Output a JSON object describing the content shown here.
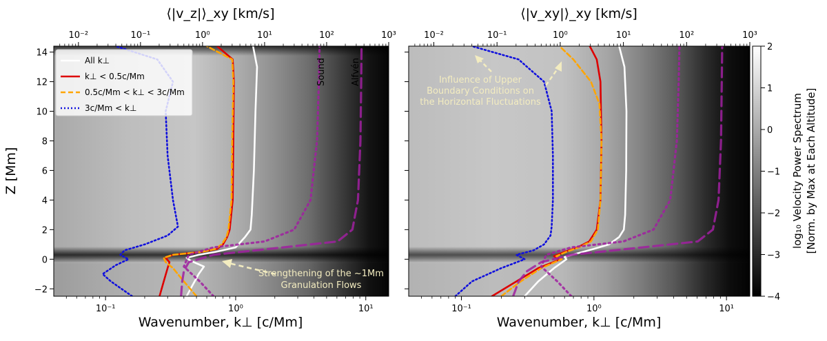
{
  "chart_data": [
    {
      "type": "line",
      "panel": "left",
      "title": "",
      "xlabel": "Wavenumber, k⊥ [c/Mm]",
      "top_xlabel": "⟨|v_z|⟩_xy [km/s]",
      "ylabel": "Z [Mm]",
      "xscale": "log",
      "xlim": [
        0.04,
        15
      ],
      "top_xlim": [
        0.004,
        1000
      ],
      "ylim": [
        -2.5,
        14.4
      ],
      "yticks": [
        -2,
        0,
        2,
        4,
        6,
        8,
        10,
        12,
        14
      ],
      "xtick_labels": [
        "10⁻¹",
        "10⁰",
        "10¹"
      ],
      "top_xtick_labels": [
        "10⁻²",
        "10⁻¹",
        "10⁰",
        "10¹",
        "10²",
        "10³"
      ],
      "background": "log10 normalized velocity power spectrum (grayscale heatmap)",
      "legend": {
        "placement": "top-left",
        "entries": [
          "All k⊥",
          "k⊥ < 0.5c/Mm",
          "0.5c/Mm < k⊥ < 3c/Mm",
          "3c/Mm < k⊥"
        ]
      },
      "series": [
        {
          "name": "All k⊥",
          "color": "#ffffff",
          "style": "solid",
          "z": [
            -2.5,
            -2.0,
            -1.0,
            -0.5,
            -0.1,
            0.1,
            0.3,
            0.5,
            0.8,
            1.5,
            2.0,
            3.0,
            6.0,
            10.0,
            13.0,
            14.4
          ],
          "values": [
            0.42,
            0.45,
            0.52,
            0.57,
            0.45,
            0.42,
            0.52,
            0.7,
            1.0,
            1.18,
            1.3,
            1.33,
            1.38,
            1.42,
            1.46,
            1.36
          ]
        },
        {
          "name": "k⊥ < 0.5c/Mm",
          "color": "#dd0000",
          "style": "solid",
          "z": [
            -2.5,
            -1.5,
            -0.6,
            -0.2,
            0.1,
            0.3,
            0.5,
            0.7,
            1.0,
            1.5,
            2.0,
            4.0,
            8.0,
            12.0,
            13.5,
            14.4
          ],
          "values": [
            0.26,
            0.28,
            0.3,
            0.31,
            0.29,
            0.33,
            0.55,
            0.72,
            0.8,
            0.86,
            0.9,
            0.95,
            0.96,
            0.97,
            0.95,
            0.72
          ]
        },
        {
          "name": "0.5c/Mm < k⊥ < 3c/Mm",
          "color": "#ffa500",
          "style": "dashed",
          "z": [
            -2.5,
            -1.5,
            -0.6,
            -0.2,
            0.1,
            0.3,
            0.5,
            0.7,
            1.0,
            1.5,
            2.0,
            4.0,
            8.0,
            12.0,
            13.5,
            14.4
          ],
          "values": [
            0.5,
            0.4,
            0.33,
            0.29,
            0.28,
            0.33,
            0.55,
            0.7,
            0.78,
            0.85,
            0.88,
            0.93,
            0.94,
            0.96,
            0.94,
            0.6
          ]
        },
        {
          "name": "3c/Mm < k⊥",
          "color": "#1010dd",
          "style": "dotted",
          "z": [
            -2.5,
            -1.5,
            -1.0,
            -0.4,
            0.0,
            0.3,
            0.6,
            1.0,
            1.6,
            2.2,
            4.0,
            7.0,
            10.0,
            12.0,
            13.5,
            14.4
          ],
          "values": [
            0.16,
            0.11,
            0.095,
            0.12,
            0.15,
            0.13,
            0.14,
            0.2,
            0.3,
            0.36,
            0.33,
            0.3,
            0.29,
            0.33,
            0.25,
            0.12
          ]
        },
        {
          "name": "Sound",
          "color": "#a020a0",
          "style": "dotted",
          "axis": "top",
          "z": [
            -2.5,
            -1.5,
            -0.5,
            0.3,
            0.8,
            1.2,
            2.0,
            4.0,
            8.0,
            12.0,
            14.4
          ],
          "values": [
            1.5,
            0.9,
            0.5,
            0.6,
            1.5,
            10,
            30,
            55,
            70,
            75,
            77
          ]
        },
        {
          "name": "Alfvén",
          "color": "#a020a0",
          "style": "dashed",
          "axis": "top",
          "z": [
            -2.5,
            -1.5,
            -0.8,
            -0.2,
            0.3,
            0.8,
            1.2,
            2.0,
            4.0,
            8.0,
            12.0,
            14.4
          ],
          "values": [
            0.45,
            0.47,
            0.5,
            0.6,
            1.5,
            20,
            150,
            260,
            320,
            350,
            360,
            365
          ]
        }
      ],
      "annotations": [
        "Sound",
        "Alfvén",
        "Strengthening of the ~1Mm",
        "Granulation Flows"
      ]
    },
    {
      "type": "line",
      "panel": "right",
      "title": "",
      "xlabel": "Wavenumber, k⊥ [c/Mm]",
      "top_xlabel": "⟨|v_xy|⟩_xy [km/s]",
      "xscale": "log",
      "xlim": [
        0.04,
        15
      ],
      "top_xlim": [
        0.004,
        1000
      ],
      "ylim": [
        -2.5,
        14.4
      ],
      "xtick_labels": [
        "10⁻¹",
        "10⁰",
        "10¹"
      ],
      "top_xtick_labels": [
        "10⁻²",
        "10⁻¹",
        "10⁰",
        "10¹",
        "10²",
        "10³"
      ],
      "series": [
        {
          "name": "All k⊥",
          "color": "#ffffff",
          "style": "solid",
          "z": [
            -2.5,
            -1.5,
            -0.6,
            0.0,
            0.15,
            0.4,
            0.7,
            1.0,
            1.5,
            2.0,
            3.0,
            6.0,
            10.0,
            13.0,
            14.4
          ],
          "values": [
            0.3,
            0.38,
            0.5,
            0.62,
            0.6,
            0.75,
            1.0,
            1.3,
            1.55,
            1.68,
            1.72,
            1.75,
            1.76,
            1.7,
            1.55
          ]
        },
        {
          "name": "k⊥ < 0.5c/Mm",
          "color": "#dd0000",
          "style": "solid",
          "z": [
            -2.5,
            -1.5,
            -0.6,
            0.0,
            0.2,
            0.5,
            0.8,
            1.2,
            2.0,
            4.0,
            8.0,
            12.0,
            13.5,
            14.4
          ],
          "values": [
            0.17,
            0.26,
            0.38,
            0.56,
            0.5,
            0.6,
            0.75,
            0.92,
            1.05,
            1.12,
            1.14,
            1.12,
            1.05,
            0.93
          ]
        },
        {
          "name": "0.5c/Mm < k⊥ < 3c/Mm",
          "color": "#ffa500",
          "style": "dashed",
          "z": [
            -2.5,
            -1.5,
            -0.6,
            0.0,
            0.2,
            0.5,
            0.8,
            1.2,
            2.0,
            4.0,
            8.0,
            10.5,
            12.0,
            13.5,
            14.4
          ],
          "values": [
            0.2,
            0.28,
            0.4,
            0.57,
            0.52,
            0.62,
            0.77,
            0.95,
            1.07,
            1.12,
            1.14,
            1.1,
            0.95,
            0.7,
            0.55
          ]
        },
        {
          "name": "3c/Mm < k⊥",
          "color": "#1010dd",
          "style": "dotted",
          "z": [
            -2.5,
            -1.5,
            -0.6,
            0.0,
            0.3,
            0.6,
            1.0,
            1.6,
            2.2,
            4.0,
            7.0,
            10.0,
            12.0,
            13.5,
            14.4
          ],
          "values": [
            0.09,
            0.12,
            0.2,
            0.3,
            0.26,
            0.35,
            0.42,
            0.47,
            0.48,
            0.49,
            0.49,
            0.48,
            0.42,
            0.27,
            0.12
          ]
        },
        {
          "name": "Sound",
          "color": "#a020a0",
          "style": "dotted",
          "axis": "top",
          "z": [
            -2.5,
            -1.5,
            -0.5,
            0.3,
            0.8,
            1.2,
            2.0,
            4.0,
            8.0,
            12.0,
            14.4
          ],
          "values": [
            1.5,
            0.9,
            0.5,
            0.6,
            1.5,
            10,
            30,
            55,
            70,
            75,
            77
          ]
        },
        {
          "name": "Alfvén",
          "color": "#a020a0",
          "style": "dashed",
          "axis": "top",
          "z": [
            -2.5,
            -1.5,
            -0.8,
            -0.2,
            0.3,
            0.8,
            1.2,
            2.0,
            4.0,
            8.0,
            12.0,
            14.4
          ],
          "values": [
            0.18,
            0.22,
            0.3,
            0.5,
            1.5,
            20,
            150,
            260,
            320,
            350,
            360,
            365
          ]
        }
      ],
      "annotations": [
        "Influence of Upper",
        "Boundary Conditions on",
        "the Horizontal Fluctuations"
      ]
    }
  ],
  "colorbar": {
    "label_line1": "log₁₀ Velocity Power Spectrum",
    "label_line2": "[Norm. by Max at Each Altitude]",
    "range": [
      -4,
      2
    ],
    "tick_values": [
      2,
      1,
      0,
      -1,
      -2,
      -3,
      -4
    ],
    "tick_labels": [
      "2",
      "1",
      "0",
      "−1",
      "−2",
      "−3",
      "−4"
    ]
  },
  "colors": {
    "all": "#ffffff",
    "low": "#dd0000",
    "mid": "#ffa500",
    "high": "#1010dd",
    "wave": "#a020a0",
    "annotation": "#f3ecc0"
  }
}
